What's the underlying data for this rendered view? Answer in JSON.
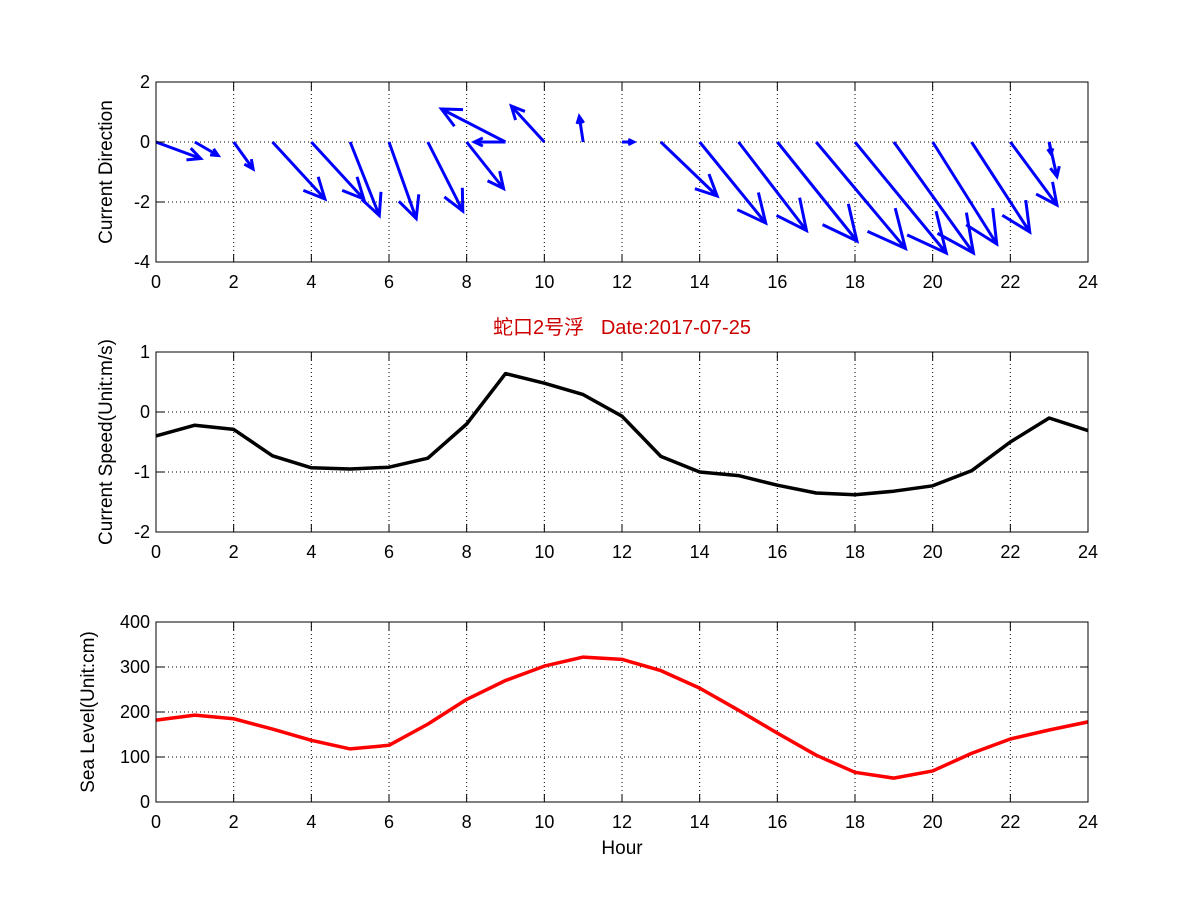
{
  "chart_data": [
    {
      "type": "quiver",
      "title": "",
      "xlabel": "",
      "ylabel": "Current Direction",
      "xlim": [
        0,
        24
      ],
      "ylim": [
        -4,
        2
      ],
      "xticks": [
        "0",
        "2",
        "4",
        "6",
        "8",
        "10",
        "12",
        "14",
        "16",
        "18",
        "20",
        "22",
        "24"
      ],
      "yticks": [
        "-4",
        "-2",
        "0",
        "2"
      ],
      "grid": true,
      "color": "#0000ff",
      "vectors": [
        {
          "x": 0,
          "u": 1.15,
          "v": -0.55
        },
        {
          "x": 1,
          "u": 0.6,
          "v": -0.45
        },
        {
          "x": 2,
          "u": 0.5,
          "v": -0.9
        },
        {
          "x": 3,
          "u": 1.35,
          "v": -1.9
        },
        {
          "x": 4,
          "u": 1.35,
          "v": -1.9
        },
        {
          "x": 5,
          "u": 0.75,
          "v": -2.45
        },
        {
          "x": 6,
          "u": 0.7,
          "v": -2.55
        },
        {
          "x": 7,
          "u": 0.9,
          "v": -2.3
        },
        {
          "x": 8,
          "u": 0.95,
          "v": -1.55
        },
        {
          "x": 9,
          "u": -1.65,
          "v": 1.1
        },
        {
          "x": 9,
          "u": -0.8,
          "v": 0.0
        },
        {
          "x": 10,
          "u": -0.85,
          "v": 1.2
        },
        {
          "x": 11,
          "u": -0.1,
          "v": 0.85
        },
        {
          "x": 12,
          "u": 0.3,
          "v": 0.0
        },
        {
          "x": 13,
          "u": 1.45,
          "v": -1.8
        },
        {
          "x": 14,
          "u": 1.7,
          "v": -2.7
        },
        {
          "x": 15,
          "u": 1.75,
          "v": -2.95
        },
        {
          "x": 16,
          "u": 2.05,
          "v": -3.3
        },
        {
          "x": 17,
          "u": 2.3,
          "v": -3.55
        },
        {
          "x": 18,
          "u": 2.35,
          "v": -3.7
        },
        {
          "x": 19,
          "u": 2.05,
          "v": -3.7
        },
        {
          "x": 20,
          "u": 1.65,
          "v": -3.4
        },
        {
          "x": 21,
          "u": 1.5,
          "v": -3.0
        },
        {
          "x": 22,
          "u": 1.2,
          "v": -2.1
        },
        {
          "x": 23,
          "u": 0.2,
          "v": -1.15
        },
        {
          "x": 23,
          "u": 0.05,
          "v": -0.4
        }
      ]
    },
    {
      "type": "line",
      "title": "蛇口2号浮   Date:2017-07-25",
      "xlabel": "",
      "ylabel": "Current Speed(Unit:m/s)",
      "xlim": [
        0,
        24
      ],
      "ylim": [
        -2,
        1
      ],
      "xticks": [
        "0",
        "2",
        "4",
        "6",
        "8",
        "10",
        "12",
        "14",
        "16",
        "18",
        "20",
        "22",
        "24"
      ],
      "yticks": [
        "-2",
        "-1",
        "0",
        "1"
      ],
      "grid": true,
      "color": "#000000",
      "x": [
        0,
        1,
        2,
        3,
        4,
        5,
        6,
        7,
        8,
        9,
        10,
        11,
        12,
        13,
        14,
        15,
        16,
        17,
        18,
        19,
        20,
        21,
        22,
        23,
        24
      ],
      "y": [
        -0.4,
        -0.22,
        -0.29,
        -0.73,
        -0.93,
        -0.95,
        -0.92,
        -0.77,
        -0.2,
        0.64,
        0.48,
        0.29,
        -0.07,
        -0.74,
        -1.0,
        -1.06,
        -1.22,
        -1.35,
        -1.38,
        -1.32,
        -1.23,
        -0.98,
        -0.5,
        -0.1,
        -0.31
      ]
    },
    {
      "type": "line",
      "title": "",
      "xlabel": "Hour",
      "ylabel": "Sea Level(Unit:cm)",
      "xlim": [
        0,
        24
      ],
      "ylim": [
        0,
        400
      ],
      "xticks": [
        "0",
        "2",
        "4",
        "6",
        "8",
        "10",
        "12",
        "14",
        "16",
        "18",
        "20",
        "22",
        "24"
      ],
      "yticks": [
        "0",
        "100",
        "200",
        "300",
        "400"
      ],
      "grid": true,
      "color": "#ff0000",
      "x": [
        0,
        1,
        2,
        3,
        4,
        5,
        6,
        7,
        8,
        9,
        10,
        11,
        12,
        13,
        14,
        15,
        16,
        17,
        18,
        19,
        20,
        21,
        22,
        23,
        24
      ],
      "y": [
        182,
        193,
        185,
        162,
        137,
        118,
        126,
        173,
        228,
        270,
        302,
        322,
        317,
        292,
        253,
        204,
        153,
        104,
        66,
        53,
        69,
        108,
        140,
        160,
        178
      ]
    }
  ]
}
